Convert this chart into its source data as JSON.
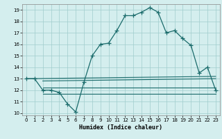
{
  "xlabel": "Humidex (Indice chaleur)",
  "bg_color": "#d4eeee",
  "grid_color": "#a0cccc",
  "line_color": "#1a6b6b",
  "xlim": [
    -0.5,
    23.5
  ],
  "ylim": [
    9.8,
    19.5
  ],
  "yticks": [
    10,
    11,
    12,
    13,
    14,
    15,
    16,
    17,
    18,
    19
  ],
  "xticks": [
    0,
    1,
    2,
    3,
    4,
    5,
    6,
    7,
    8,
    9,
    10,
    11,
    12,
    13,
    14,
    15,
    16,
    17,
    18,
    19,
    20,
    21,
    22,
    23
  ],
  "series_main": {
    "x": [
      0,
      1,
      2,
      3,
      4,
      5,
      6,
      7,
      8,
      9,
      10,
      11,
      12,
      13,
      14,
      15,
      16,
      17,
      18,
      19,
      20,
      21,
      22,
      23
    ],
    "y": [
      13.0,
      13.0,
      12.0,
      12.0,
      11.8,
      10.8,
      10.1,
      12.7,
      15.0,
      16.0,
      16.1,
      17.2,
      18.5,
      18.5,
      18.8,
      19.2,
      18.8,
      17.0,
      17.2,
      16.5,
      15.9,
      13.5,
      14.0,
      12.0
    ]
  },
  "series_line1": {
    "x": [
      0,
      23
    ],
    "y": [
      13.0,
      13.2
    ]
  },
  "series_line2": {
    "x": [
      2,
      23
    ],
    "y": [
      12.8,
      13.0
    ]
  },
  "series_line3": {
    "x": [
      2,
      23
    ],
    "y": [
      12.2,
      12.2
    ]
  },
  "series_line4": {
    "x": [
      2,
      23
    ],
    "y": [
      11.7,
      11.7
    ]
  }
}
